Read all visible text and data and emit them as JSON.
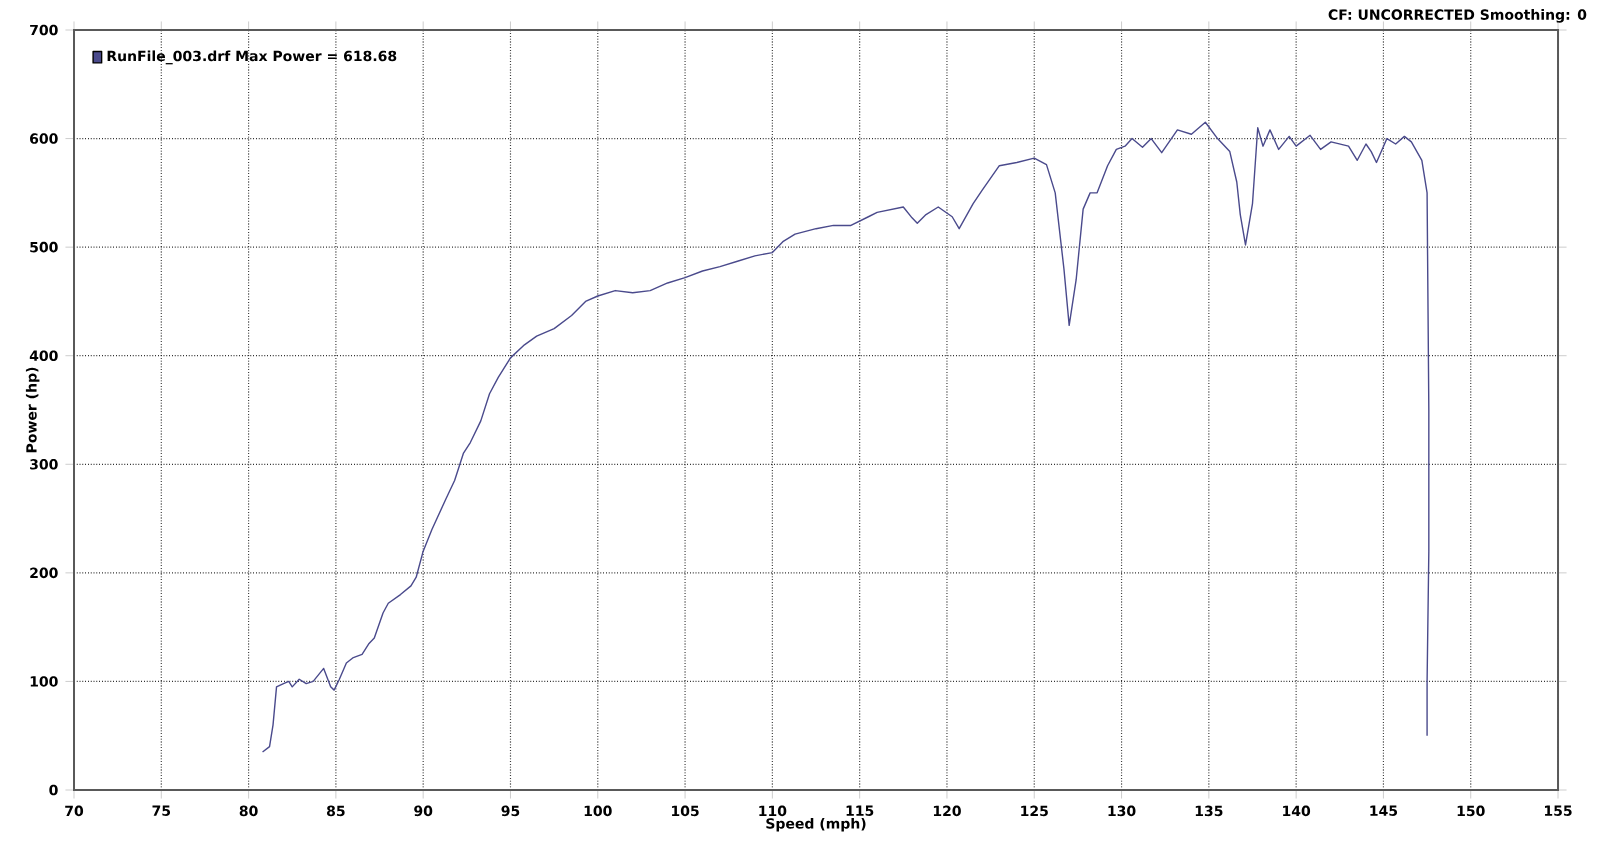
{
  "chart_data": {
    "type": "line",
    "xlabel": "Speed (mph)",
    "ylabel": "Power (hp)",
    "annotations": [
      "CF: UNCORRECTED  Smoothing: 0"
    ],
    "xlim": [
      70,
      155
    ],
    "ylim": [
      0,
      700
    ],
    "xticks": [
      70,
      75,
      80,
      85,
      90,
      95,
      100,
      105,
      110,
      115,
      120,
      125,
      130,
      135,
      140,
      145,
      150,
      155
    ],
    "yticks": [
      0,
      100,
      200,
      300,
      400,
      500,
      600,
      700
    ],
    "grid": true,
    "legend": "top left",
    "line_style": "solid",
    "marker": "none",
    "series": [
      {
        "name": "RunFile_003.drf Max Power = 618.68",
        "color": "#4a4a8c",
        "x": [
          80.8,
          81.2,
          81.4,
          81.6,
          82,
          82.3,
          82.5,
          82.9,
          83.3,
          83.7,
          84.3,
          84.7,
          84.9,
          85.2,
          85.6,
          86,
          86.5,
          86.9,
          87.2,
          87.7,
          88,
          88.7,
          89.3,
          89.6,
          90,
          90.5,
          91.3,
          91.8,
          92.3,
          92.7,
          93.3,
          93.8,
          94.3,
          95,
          95.8,
          96.5,
          97.5,
          98.5,
          99.3,
          100,
          101,
          102,
          103,
          104,
          105,
          106,
          107,
          108,
          109,
          110,
          110.6,
          111.3,
          112.5,
          113.5,
          114.5,
          115.5,
          116,
          117.5,
          118,
          118.3,
          118.8,
          119.5,
          120.3,
          120.7,
          121.5,
          122,
          123,
          124,
          125,
          125.7,
          126.2,
          126.7,
          127,
          127.4,
          127.8,
          128.2,
          128.6,
          129.2,
          129.7,
          130.2,
          130.6,
          131.2,
          131.7,
          132.3,
          133.2,
          134,
          134.8,
          135.5,
          136.2,
          136.6,
          136.8,
          137.1,
          137.5,
          137.8,
          138.1,
          138.5,
          139,
          139.6,
          140,
          140.8,
          141.4,
          142,
          143,
          143.5,
          144,
          144.3,
          144.6,
          145.2,
          145.7,
          146.2,
          146.6,
          147.2,
          147.5,
          147.6,
          147.6,
          147.5,
          147.5
        ],
        "values": [
          35,
          40,
          60,
          95,
          98,
          100,
          95,
          102,
          98,
          100,
          112,
          95,
          92,
          102,
          117,
          122,
          125,
          135,
          140,
          163,
          172,
          180,
          188,
          196,
          220,
          240,
          268,
          285,
          310,
          320,
          340,
          365,
          380,
          398,
          410,
          418,
          425,
          437,
          450,
          455,
          460,
          458,
          460,
          467,
          472,
          478,
          482,
          487,
          492,
          495,
          505,
          512,
          517,
          520,
          520,
          528,
          532,
          537,
          527,
          522,
          530,
          537,
          528,
          517,
          540,
          552,
          575,
          578,
          582,
          576,
          550,
          480,
          428,
          470,
          535,
          550,
          550,
          575,
          590,
          593,
          600,
          592,
          600,
          587,
          608,
          604,
          615,
          600,
          588,
          560,
          530,
          502,
          540,
          610,
          593,
          608,
          590,
          602,
          593,
          603,
          590,
          597,
          593,
          580,
          595,
          588,
          578,
          600,
          595,
          602,
          597,
          580,
          550,
          350,
          220,
          100,
          50
        ]
      }
    ]
  }
}
